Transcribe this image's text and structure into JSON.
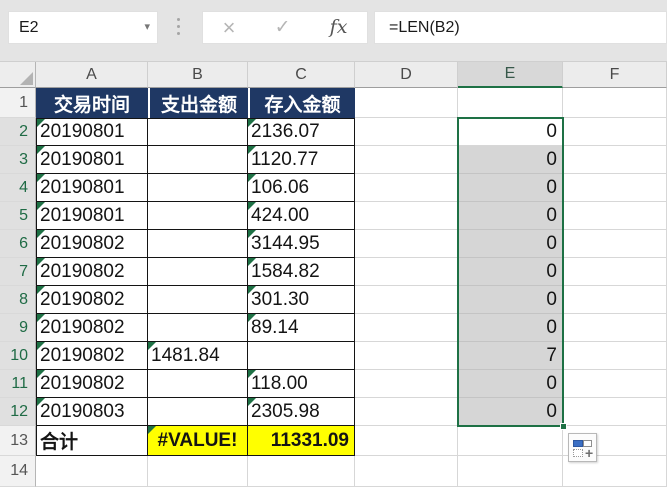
{
  "toolbar": {
    "name_box_value": "E2",
    "name_box_dropdown_icon": "▾",
    "cancel_icon": "×",
    "enter_icon": "✓",
    "insert_function_icon": "fx",
    "formula_bar_value": "=LEN(B2)"
  },
  "colors": {
    "table_header_fill": "#1F3864",
    "table_header_text": "#FFFFFF",
    "total_row_fill": "#FFFF00",
    "selection_green": "#1E7145",
    "selection_range_fill": "#D6D6D6",
    "error_flag_green": "#1E7145"
  },
  "sheet": {
    "column_headers": [
      "A",
      "B",
      "C",
      "D",
      "E",
      "F"
    ],
    "active_cell": "E2",
    "selected_range": "E2:E12",
    "selected_column": "E",
    "selected_row_start": 2,
    "selected_row_end": 12,
    "error_flag_cells": [
      "A2",
      "C2",
      "A3",
      "C3",
      "A4",
      "C4",
      "A5",
      "C5",
      "A6",
      "C6",
      "A7",
      "C7",
      "A8",
      "C8",
      "A9",
      "C9",
      "A10",
      "B10",
      "A11",
      "C11",
      "A12",
      "C12",
      "B13"
    ],
    "rows": [
      {
        "num": "1",
        "a": "交易时间",
        "b": "支出金额",
        "c": "存入金额",
        "d": "",
        "e": "",
        "f": ""
      },
      {
        "num": "2",
        "a": "20190801",
        "b": "",
        "c": "2136.07",
        "d": "",
        "e": "0",
        "f": ""
      },
      {
        "num": "3",
        "a": "20190801",
        "b": "",
        "c": "1120.77",
        "d": "",
        "e": "0",
        "f": ""
      },
      {
        "num": "4",
        "a": "20190801",
        "b": "",
        "c": "106.06",
        "d": "",
        "e": "0",
        "f": ""
      },
      {
        "num": "5",
        "a": "20190801",
        "b": "",
        "c": "424.00",
        "d": "",
        "e": "0",
        "f": ""
      },
      {
        "num": "6",
        "a": "20190802",
        "b": "",
        "c": "3144.95",
        "d": "",
        "e": "0",
        "f": ""
      },
      {
        "num": "7",
        "a": "20190802",
        "b": "",
        "c": "1584.82",
        "d": "",
        "e": "0",
        "f": ""
      },
      {
        "num": "8",
        "a": "20190802",
        "b": "",
        "c": "301.30",
        "d": "",
        "e": "0",
        "f": ""
      },
      {
        "num": "9",
        "a": "20190802",
        "b": "",
        "c": "89.14",
        "d": "",
        "e": "0",
        "f": ""
      },
      {
        "num": "10",
        "a": "20190802",
        "b": "1481.84",
        "c": "",
        "d": "",
        "e": "7",
        "f": ""
      },
      {
        "num": "11",
        "a": "20190802",
        "b": "",
        "c": "118.00",
        "d": "",
        "e": "0",
        "f": ""
      },
      {
        "num": "12",
        "a": "20190803",
        "b": "",
        "c": "2305.98",
        "d": "",
        "e": "0",
        "f": ""
      },
      {
        "num": "13",
        "a": "合计",
        "b": "#VALUE!",
        "c": "11331.09",
        "d": "",
        "e": "",
        "f": ""
      },
      {
        "num": "14",
        "a": "",
        "b": "",
        "c": "",
        "d": "",
        "e": "",
        "f": ""
      }
    ]
  }
}
